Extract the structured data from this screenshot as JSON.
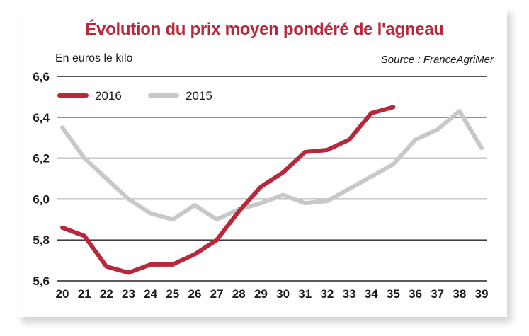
{
  "chart_data": {
    "type": "line",
    "title": "Évolution du prix moyen pondéré de l'agneau",
    "ylabel": "En euros le kilo",
    "source": "Source : FranceAgriMer",
    "ylim": [
      5.6,
      6.6
    ],
    "yticks": [
      "5,6",
      "5,8",
      "6,0",
      "6,2",
      "6,4",
      "6,6"
    ],
    "ytick_values": [
      5.6,
      5.8,
      6.0,
      6.2,
      6.4,
      6.6
    ],
    "xlim": [
      20,
      39
    ],
    "x": [
      20,
      21,
      22,
      23,
      24,
      25,
      26,
      27,
      28,
      29,
      30,
      31,
      32,
      33,
      34,
      35,
      36,
      37,
      38,
      39
    ],
    "xticks": [
      "20",
      "21",
      "22",
      "23",
      "24",
      "25",
      "26",
      "27",
      "28",
      "29",
      "30",
      "31",
      "32",
      "33",
      "34",
      "35",
      "36",
      "37",
      "38",
      "39"
    ],
    "grid": "horizontal",
    "legend": "top-left",
    "series": [
      {
        "name": "2016",
        "color": "#b7283b",
        "x": [
          20,
          21,
          22,
          23,
          24,
          25,
          26,
          27,
          28,
          29,
          30,
          31,
          32,
          33,
          34,
          35
        ],
        "values": [
          5.86,
          5.82,
          5.67,
          5.64,
          5.68,
          5.68,
          5.73,
          5.8,
          5.94,
          6.06,
          6.13,
          6.23,
          6.24,
          6.29,
          6.42,
          6.45
        ]
      },
      {
        "name": "2015",
        "color": "#c8c8c8",
        "x": [
          20,
          21,
          22,
          23,
          24,
          25,
          26,
          27,
          28,
          29,
          30,
          31,
          32,
          33,
          34,
          35,
          36,
          37,
          38,
          39
        ],
        "values": [
          6.35,
          6.2,
          6.1,
          6.0,
          5.93,
          5.9,
          5.97,
          5.9,
          5.95,
          5.98,
          6.02,
          5.98,
          5.99,
          6.05,
          6.11,
          6.17,
          6.29,
          6.34,
          6.43,
          6.25
        ]
      }
    ]
  }
}
